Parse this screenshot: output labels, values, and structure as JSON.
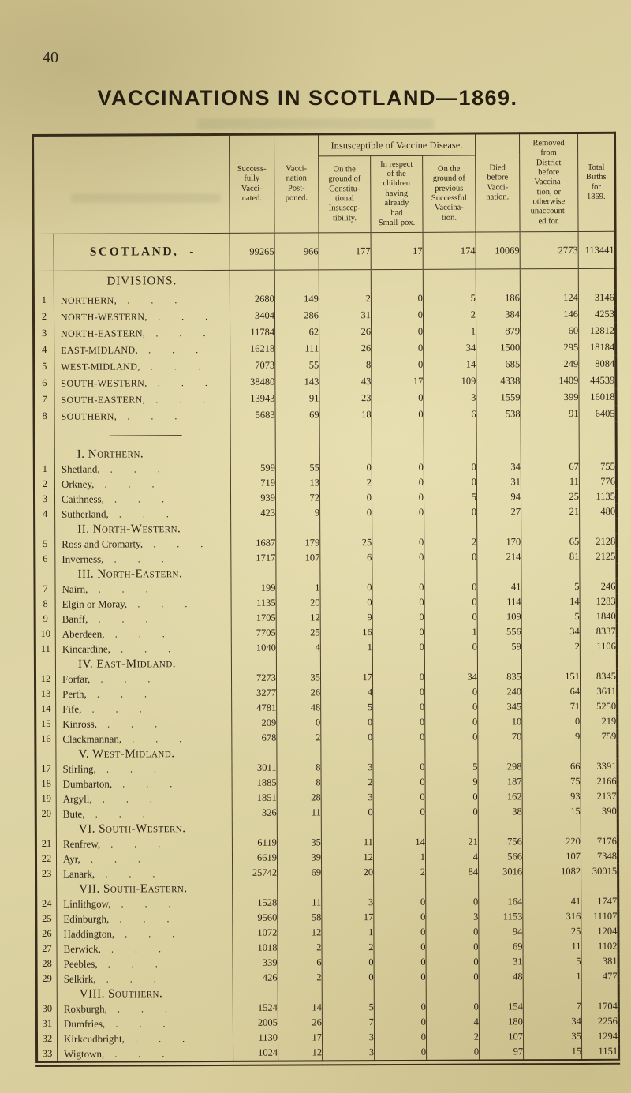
{
  "page": {
    "number": "40",
    "title": "VACCINATIONS IN SCOTLAND—1869."
  },
  "table": {
    "spanner": "Insusceptible of Vaccine Disease.",
    "columns": {
      "successfully": "Success-\nfully\nVacci-\nnated.",
      "postponed": "Vacci-\nnation\nPost-\nponed.",
      "constitutional": "On the\nground of\nConstitu-\ntional\nInsuscep-\ntibility.",
      "smallpox": "In respect\nof the\nchildren\nhaving\nalready\nhad\nSmall-pox.",
      "previous": "On the\nground of\nprevious\nSuccessful\nVaccina-\ntion.",
      "died": "Died\nbefore\nVacci-\nnation.",
      "removed": "Removed\nfrom\nDistrict\nbefore\nVaccina-\ntion, or\notherwise\nunaccount-\ned for.",
      "total": "Total\nBirths\nfor\n1869."
    },
    "leader_dots": ". . .",
    "scotland": {
      "label": "SCOTLAND,",
      "dash": "-",
      "values": [
        "99265",
        "966",
        "177",
        "17",
        "174",
        "10069",
        "2773",
        "113441"
      ]
    },
    "divisions_heading": "DIVISIONS.",
    "divisions": [
      {
        "num": "1",
        "label": "NORTHERN,",
        "values": [
          "2680",
          "149",
          "2",
          "0",
          "5",
          "186",
          "124",
          "3146"
        ]
      },
      {
        "num": "2",
        "label": "NORTH-WESTERN,",
        "values": [
          "3404",
          "286",
          "31",
          "0",
          "2",
          "384",
          "146",
          "4253"
        ]
      },
      {
        "num": "3",
        "label": "NORTH-EASTERN,",
        "values": [
          "11784",
          "62",
          "26",
          "0",
          "1",
          "879",
          "60",
          "12812"
        ]
      },
      {
        "num": "4",
        "label": "EAST-MIDLAND,",
        "values": [
          "16218",
          "111",
          "26",
          "0",
          "34",
          "1500",
          "295",
          "18184"
        ]
      },
      {
        "num": "5",
        "label": "WEST-MIDLAND,",
        "values": [
          "7073",
          "55",
          "8",
          "0",
          "14",
          "685",
          "249",
          "8084"
        ]
      },
      {
        "num": "6",
        "label": "SOUTH-WESTERN,",
        "values": [
          "38480",
          "143",
          "43",
          "17",
          "109",
          "4338",
          "1409",
          "44539"
        ]
      },
      {
        "num": "7",
        "label": "SOUTH-EASTERN,",
        "values": [
          "13943",
          "91",
          "23",
          "0",
          "3",
          "1559",
          "399",
          "16018"
        ]
      },
      {
        "num": "8",
        "label": "SOUTHERN,",
        "values": [
          "5683",
          "69",
          "18",
          "0",
          "6",
          "538",
          "91",
          "6405"
        ]
      }
    ],
    "sections": [
      {
        "heading": "I. Northern.",
        "rows": [
          {
            "num": "1",
            "label": "Shetland,",
            "values": [
              "599",
              "55",
              "0",
              "0",
              "0",
              "34",
              "67",
              "755"
            ]
          },
          {
            "num": "2",
            "label": "Orkney,",
            "values": [
              "719",
              "13",
              "2",
              "0",
              "0",
              "31",
              "11",
              "776"
            ]
          },
          {
            "num": "3",
            "label": "Caithness,",
            "values": [
              "939",
              "72",
              "0",
              "0",
              "5",
              "94",
              "25",
              "1135"
            ]
          },
          {
            "num": "4",
            "label": "Sutherland,",
            "values": [
              "423",
              "9",
              "0",
              "0",
              "0",
              "27",
              "21",
              "480"
            ]
          }
        ]
      },
      {
        "heading": "II. North-Western.",
        "rows": [
          {
            "num": "5",
            "label": "Ross and Cromarty,",
            "values": [
              "1687",
              "179",
              "25",
              "0",
              "2",
              "170",
              "65",
              "2128"
            ]
          },
          {
            "num": "6",
            "label": "Inverness,",
            "values": [
              "1717",
              "107",
              "6",
              "0",
              "0",
              "214",
              "81",
              "2125"
            ]
          }
        ]
      },
      {
        "heading": "III. North-Eastern.",
        "rows": [
          {
            "num": "7",
            "label": "Nairn,",
            "values": [
              "199",
              "1",
              "0",
              "0",
              "0",
              "41",
              "5",
              "246"
            ]
          },
          {
            "num": "8",
            "label": "Elgin or Moray,",
            "values": [
              "1135",
              "20",
              "0",
              "0",
              "0",
              "114",
              "14",
              "1283"
            ]
          },
          {
            "num": "9",
            "label": "Banff,",
            "values": [
              "1705",
              "12",
              "9",
              "0",
              "0",
              "109",
              "5",
              "1840"
            ]
          },
          {
            "num": "10",
            "label": "Aberdeen,",
            "values": [
              "7705",
              "25",
              "16",
              "0",
              "1",
              "556",
              "34",
              "8337"
            ]
          },
          {
            "num": "11",
            "label": "Kincardine,",
            "values": [
              "1040",
              "4",
              "1",
              "0",
              "0",
              "59",
              "2",
              "1106"
            ]
          }
        ]
      },
      {
        "heading": "IV. East-Midland.",
        "rows": [
          {
            "num": "12",
            "label": "Forfar,",
            "values": [
              "7273",
              "35",
              "17",
              "0",
              "34",
              "835",
              "151",
              "8345"
            ]
          },
          {
            "num": "13",
            "label": "Perth,",
            "values": [
              "3277",
              "26",
              "4",
              "0",
              "0",
              "240",
              "64",
              "3611"
            ]
          },
          {
            "num": "14",
            "label": "Fife,",
            "values": [
              "4781",
              "48",
              "5",
              "0",
              "0",
              "345",
              "71",
              "5250"
            ]
          },
          {
            "num": "15",
            "label": "Kinross,",
            "values": [
              "209",
              "0",
              "0",
              "0",
              "0",
              "10",
              "0",
              "219"
            ]
          },
          {
            "num": "16",
            "label": "Clackmannan,",
            "values": [
              "678",
              "2",
              "0",
              "0",
              "0",
              "70",
              "9",
              "759"
            ]
          }
        ]
      },
      {
        "heading": "V. West-Midland.",
        "rows": [
          {
            "num": "17",
            "label": "Stirling,",
            "values": [
              "3011",
              "8",
              "3",
              "0",
              "5",
              "298",
              "66",
              "3391"
            ]
          },
          {
            "num": "18",
            "label": "Dumbarton,",
            "values": [
              "1885",
              "8",
              "2",
              "0",
              "9",
              "187",
              "75",
              "2166"
            ]
          },
          {
            "num": "19",
            "label": "Argyll,",
            "values": [
              "1851",
              "28",
              "3",
              "0",
              "0",
              "162",
              "93",
              "2137"
            ]
          },
          {
            "num": "20",
            "label": "Bute,",
            "values": [
              "326",
              "11",
              "0",
              "0",
              "0",
              "38",
              "15",
              "390"
            ]
          }
        ]
      },
      {
        "heading": "VI. South-Western.",
        "rows": [
          {
            "num": "21",
            "label": "Renfrew,",
            "values": [
              "6119",
              "35",
              "11",
              "14",
              "21",
              "756",
              "220",
              "7176"
            ]
          },
          {
            "num": "22",
            "label": "Ayr,",
            "values": [
              "6619",
              "39",
              "12",
              "1",
              "4",
              "566",
              "107",
              "7348"
            ]
          },
          {
            "num": "23",
            "label": "Lanark,",
            "values": [
              "25742",
              "69",
              "20",
              "2",
              "84",
              "3016",
              "1082",
              "30015"
            ]
          }
        ]
      },
      {
        "heading": "VII. South-Eastern.",
        "rows": [
          {
            "num": "24",
            "label": "Linlithgow,",
            "values": [
              "1528",
              "11",
              "3",
              "0",
              "0",
              "164",
              "41",
              "1747"
            ]
          },
          {
            "num": "25",
            "label": "Edinburgh,",
            "values": [
              "9560",
              "58",
              "17",
              "0",
              "3",
              "1153",
              "316",
              "11107"
            ]
          },
          {
            "num": "26",
            "label": "Haddington,",
            "values": [
              "1072",
              "12",
              "1",
              "0",
              "0",
              "94",
              "25",
              "1204"
            ]
          },
          {
            "num": "27",
            "label": "Berwick,",
            "values": [
              "1018",
              "2",
              "2",
              "0",
              "0",
              "69",
              "11",
              "1102"
            ]
          },
          {
            "num": "28",
            "label": "Peebles,",
            "values": [
              "339",
              "6",
              "0",
              "0",
              "0",
              "31",
              "5",
              "381"
            ]
          },
          {
            "num": "29",
            "label": "Selkirk,",
            "values": [
              "426",
              "2",
              "0",
              "0",
              "0",
              "48",
              "1",
              "477"
            ]
          }
        ]
      },
      {
        "heading": "VIII. Southern.",
        "rows": [
          {
            "num": "30",
            "label": "Roxburgh,",
            "values": [
              "1524",
              "14",
              "5",
              "0",
              "0",
              "154",
              "7",
              "1704"
            ]
          },
          {
            "num": "31",
            "label": "Dumfries,",
            "values": [
              "2005",
              "26",
              "7",
              "0",
              "4",
              "180",
              "34",
              "2256"
            ]
          },
          {
            "num": "32",
            "label": "Kirkcudbright,",
            "values": [
              "1130",
              "17",
              "3",
              "0",
              "2",
              "107",
              "35",
              "1294"
            ]
          },
          {
            "num": "33",
            "label": "Wigtown,",
            "values": [
              "1024",
              "12",
              "3",
              "0",
              "0",
              "97",
              "15",
              "1151"
            ]
          }
        ]
      }
    ],
    "colors": {
      "paper": "#dbd1a1",
      "ink": "#2c2517",
      "rule": "#463b25"
    }
  }
}
